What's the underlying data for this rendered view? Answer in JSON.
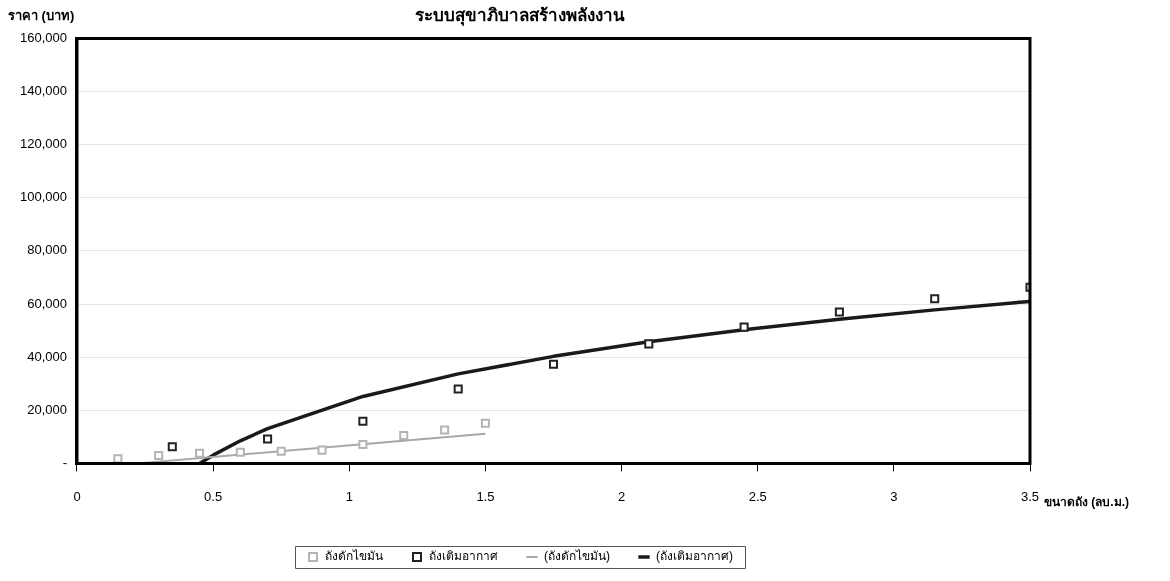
{
  "chart_data": {
    "type": "scatter",
    "title": "ระบบสุขาภิบาลสร้างพลังงาน",
    "xlabel": "ขนาดถัง (ลบ.ม.)",
    "ylabel": "ราคา (บาท)",
    "xlim": [
      0,
      3.5
    ],
    "xticks": [
      0,
      0.5,
      1,
      1.5,
      2,
      2.5,
      3,
      3.5
    ],
    "ylim": [
      0,
      160000
    ],
    "yticks": [
      {
        "value": 0,
        "label": "-"
      },
      {
        "value": 20000,
        "label": "20,000"
      },
      {
        "value": 40000,
        "label": "40,000"
      },
      {
        "value": 60000,
        "label": "60,000"
      },
      {
        "value": 80000,
        "label": "80,000"
      },
      {
        "value": 100000,
        "label": "100,000"
      },
      {
        "value": 120000,
        "label": "120,000"
      },
      {
        "value": 140000,
        "label": "140,000"
      },
      {
        "value": 160000,
        "label": "160,000"
      }
    ],
    "grid": "y",
    "legend": "bottom",
    "marker": "square",
    "series": [
      {
        "name": "ถังดักไขมัน",
        "type": "scatter",
        "color": "#b4b4b4",
        "x": [
          0.15,
          0.3,
          0.45,
          0.6,
          0.75,
          0.9,
          1.05,
          1.2,
          1.35,
          1.5
        ],
        "values": [
          1700,
          3000,
          3800,
          4200,
          4600,
          5000,
          7100,
          10500,
          12600,
          15100
        ]
      },
      {
        "name": "ถังเติมอากาศ",
        "type": "scatter",
        "color": "#222222",
        "x": [
          0.35,
          0.7,
          1.05,
          1.4,
          1.75,
          2.1,
          2.45,
          2.8,
          3.15,
          3.5
        ],
        "values": [
          6300,
          9200,
          15900,
          28000,
          37300,
          45000,
          51300,
          57000,
          62000,
          66300
        ]
      },
      {
        "name": "(ถังดักไขมัน)",
        "type": "line",
        "marker": "none",
        "line_style": "solid",
        "color": "#a8a8a8",
        "x": [
          0.22,
          1.5
        ],
        "values": [
          0,
          11200
        ]
      },
      {
        "name": "(ถังเติมอากาศ)",
        "type": "line",
        "marker": "none",
        "line_style": "solid",
        "color": "#1a1a1a",
        "x": [
          0.45,
          0.5,
          0.6,
          0.7,
          1.05,
          1.4,
          1.75,
          2.1,
          2.45,
          2.8,
          3.15,
          3.5
        ],
        "values": [
          0,
          3100,
          8500,
          13100,
          25200,
          33700,
          40300,
          45800,
          50300,
          54300,
          57800,
          61000
        ]
      }
    ]
  }
}
